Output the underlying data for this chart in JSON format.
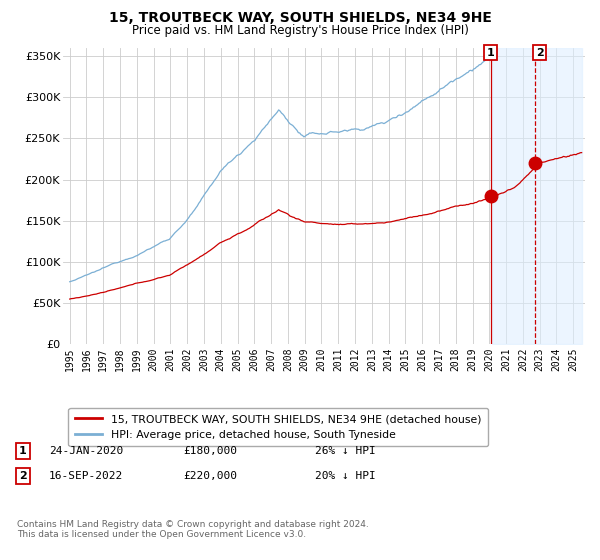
{
  "title": "15, TROUTBECK WAY, SOUTH SHIELDS, NE34 9HE",
  "subtitle": "Price paid vs. HM Land Registry's House Price Index (HPI)",
  "ylim": [
    0,
    360000
  ],
  "yticks": [
    0,
    50000,
    100000,
    150000,
    200000,
    250000,
    300000,
    350000
  ],
  "hpi_color": "#7bafd4",
  "price_color": "#cc0000",
  "vline1_color": "#cc0000",
  "vline2_color": "#cc0000",
  "shade_color": "#ddeeff",
  "transaction1_year": 2020.08,
  "transaction1_price": 180000,
  "transaction1_pct": "26%",
  "transaction1_date": "24-JAN-2020",
  "transaction2_year": 2022.75,
  "transaction2_price": 220000,
  "transaction2_pct": "20%",
  "transaction2_date": "16-SEP-2022",
  "legend_label1": "15, TROUTBECK WAY, SOUTH SHIELDS, NE34 9HE (detached house)",
  "legend_label2": "HPI: Average price, detached house, South Tyneside",
  "footnote": "Contains HM Land Registry data © Crown copyright and database right 2024.\nThis data is licensed under the Open Government Licence v3.0.",
  "background_color": "#ffffff",
  "grid_color": "#cccccc",
  "xlim_left": 1994.6,
  "xlim_right": 2025.7
}
